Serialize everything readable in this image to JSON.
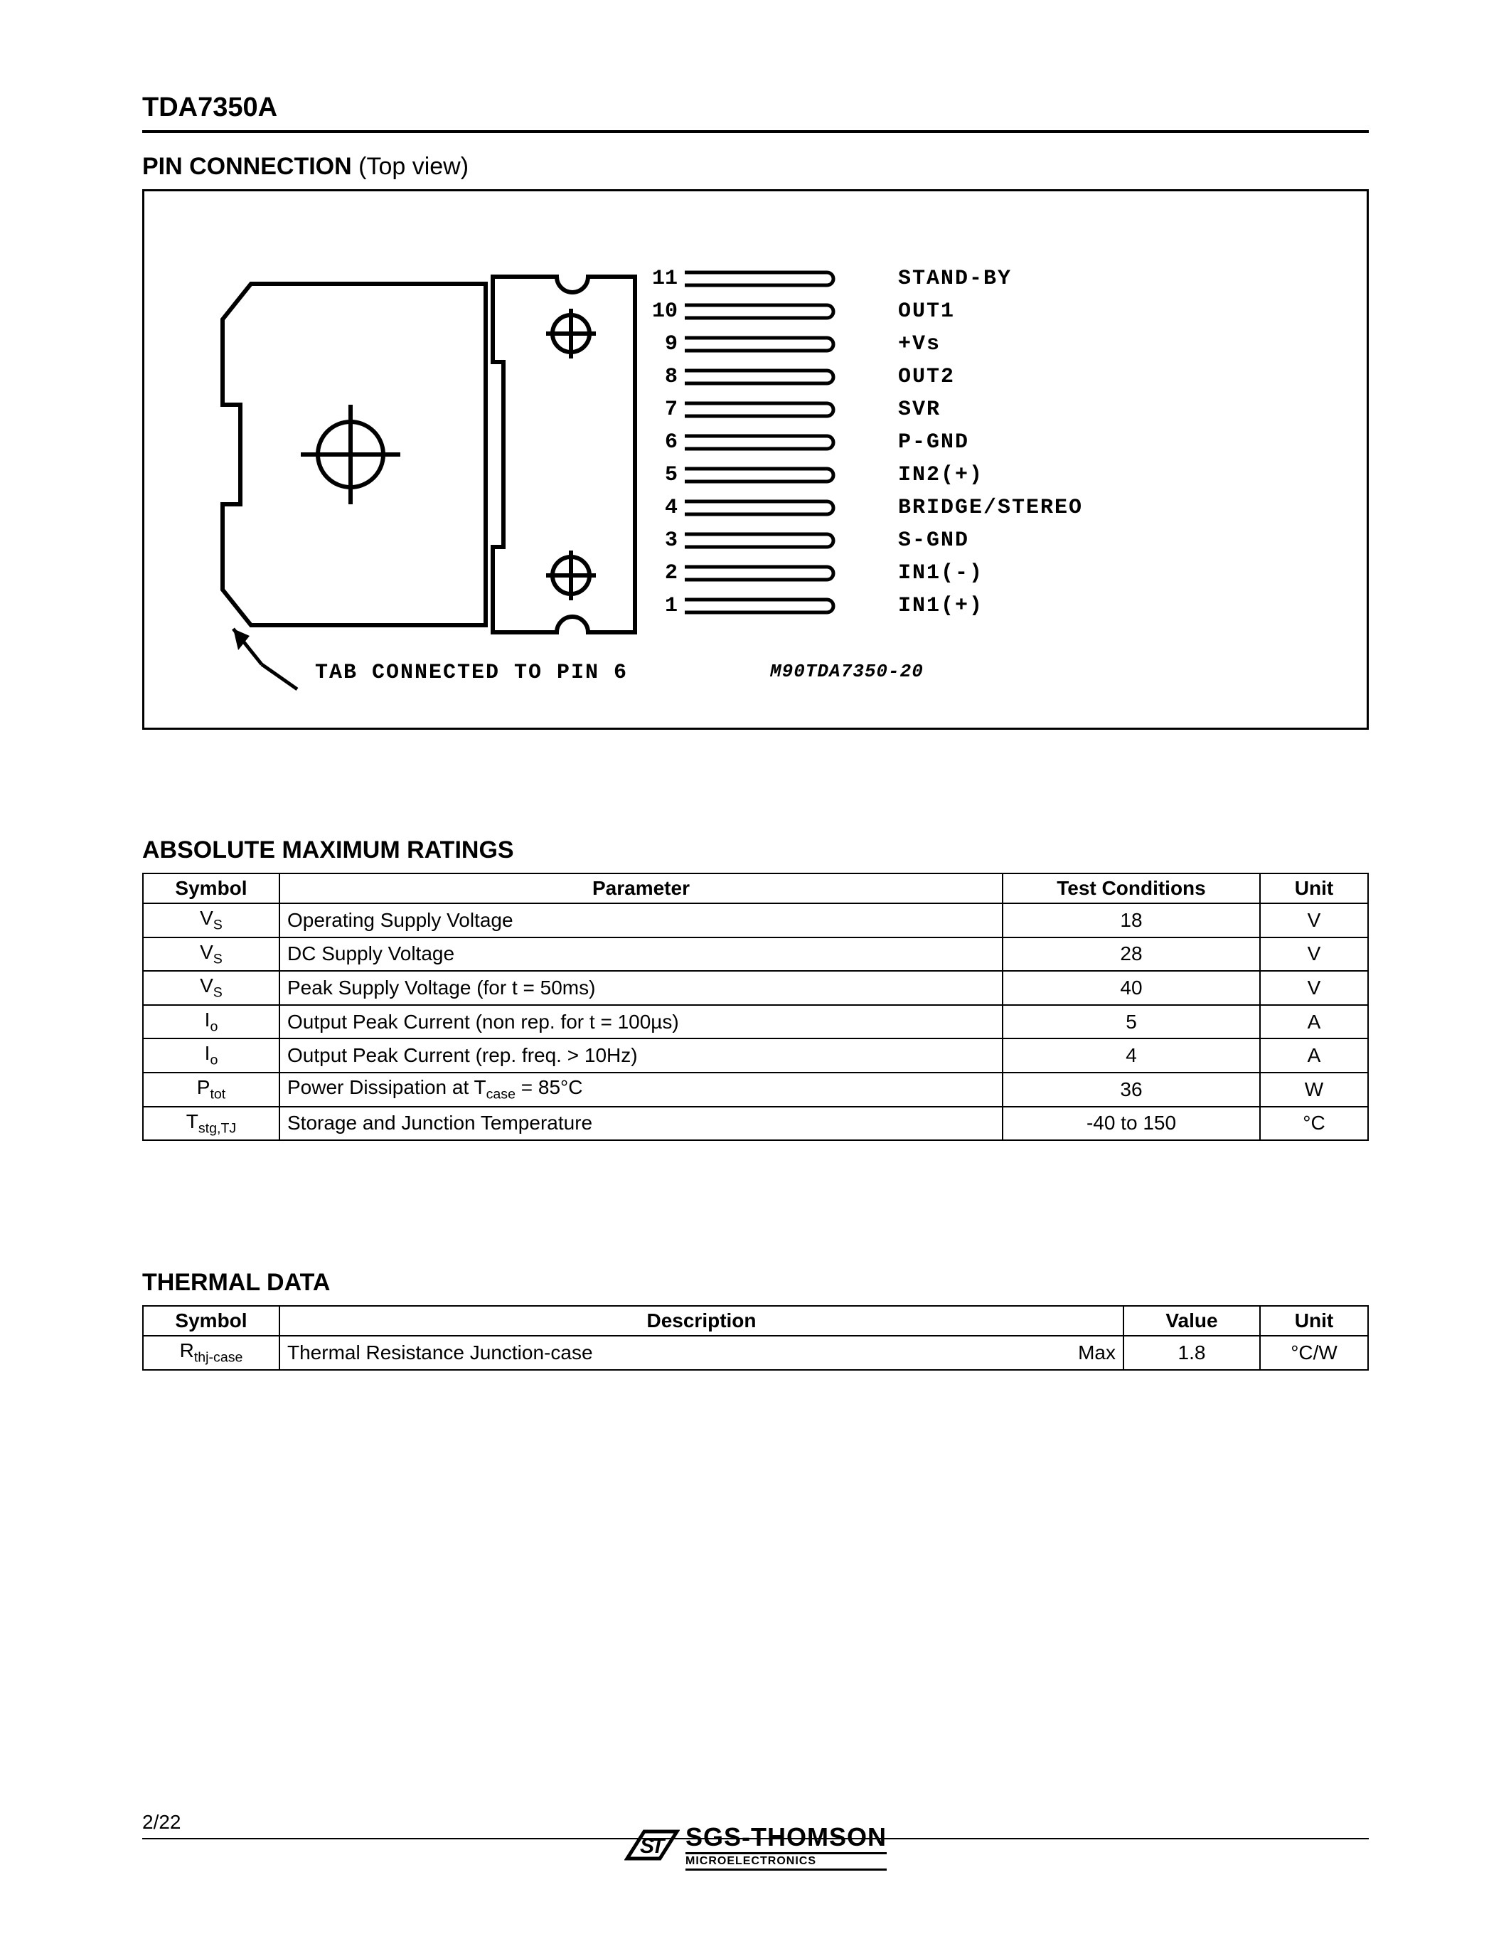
{
  "document_title": "TDA7350A",
  "page_number": "2/22",
  "pin_connection": {
    "title_bold": "PIN CONNECTION",
    "title_rest": " (Top view)",
    "tab_note": "TAB CONNECTED TO PIN 6",
    "ref_note": "M90TDA7350-20",
    "pins": [
      {
        "num": "11",
        "label": "STAND-BY"
      },
      {
        "num": "10",
        "label": "OUT1"
      },
      {
        "num": "9",
        "label": "+Vs"
      },
      {
        "num": "8",
        "label": "OUT2"
      },
      {
        "num": "7",
        "label": "SVR"
      },
      {
        "num": "6",
        "label": "P-GND"
      },
      {
        "num": "5",
        "label": "IN2(+)"
      },
      {
        "num": "4",
        "label": "BRIDGE/STEREO"
      },
      {
        "num": "3",
        "label": "S-GND"
      },
      {
        "num": "2",
        "label": "IN1(-)"
      },
      {
        "num": "1",
        "label": "IN1(+)"
      }
    ]
  },
  "abs_max": {
    "title": "ABSOLUTE MAXIMUM RATINGS",
    "headers": {
      "symbol": "Symbol",
      "parameter": "Parameter",
      "conditions": "Test Conditions",
      "unit": "Unit"
    },
    "rows": [
      {
        "sym_main": "V",
        "sym_sub": "S",
        "param": "Operating Supply Voltage",
        "cond": "18",
        "unit": "V"
      },
      {
        "sym_main": "V",
        "sym_sub": "S",
        "param": "DC Supply Voltage",
        "cond": "28",
        "unit": "V"
      },
      {
        "sym_main": "V",
        "sym_sub": "S",
        "param": "Peak Supply Voltage (for t = 50ms)",
        "cond": "40",
        "unit": "V"
      },
      {
        "sym_main": "I",
        "sym_sub": "o",
        "param": "Output Peak Current (non rep. for t = 100µs)",
        "cond": "5",
        "unit": "A"
      },
      {
        "sym_main": "I",
        "sym_sub": "o",
        "param": "Output Peak Current (rep. freq. > 10Hz)",
        "cond": "4",
        "unit": "A"
      },
      {
        "sym_main": "P",
        "sym_sub": "tot",
        "param": "Power Dissipation at Tcase = 85°C",
        "cond": "36",
        "unit": "W"
      },
      {
        "sym_main": "T",
        "sym_sub": "stg,TJ",
        "param": "Storage and Junction Temperature",
        "cond": "-40 to 150",
        "unit": "°C"
      }
    ]
  },
  "thermal": {
    "title": "THERMAL DATA",
    "headers": {
      "symbol": "Symbol",
      "description": "Description",
      "value": "Value",
      "unit": "Unit"
    },
    "rows": [
      {
        "sym_main": "R",
        "sym_sub": "thj-case",
        "desc": "Thermal Resistance Junction-case",
        "qual": "Max",
        "value": "1.8",
        "unit": "°C/W"
      }
    ]
  },
  "logo": {
    "main": "SGS-THOMSON",
    "sub": "MICROELECTRONICS"
  }
}
